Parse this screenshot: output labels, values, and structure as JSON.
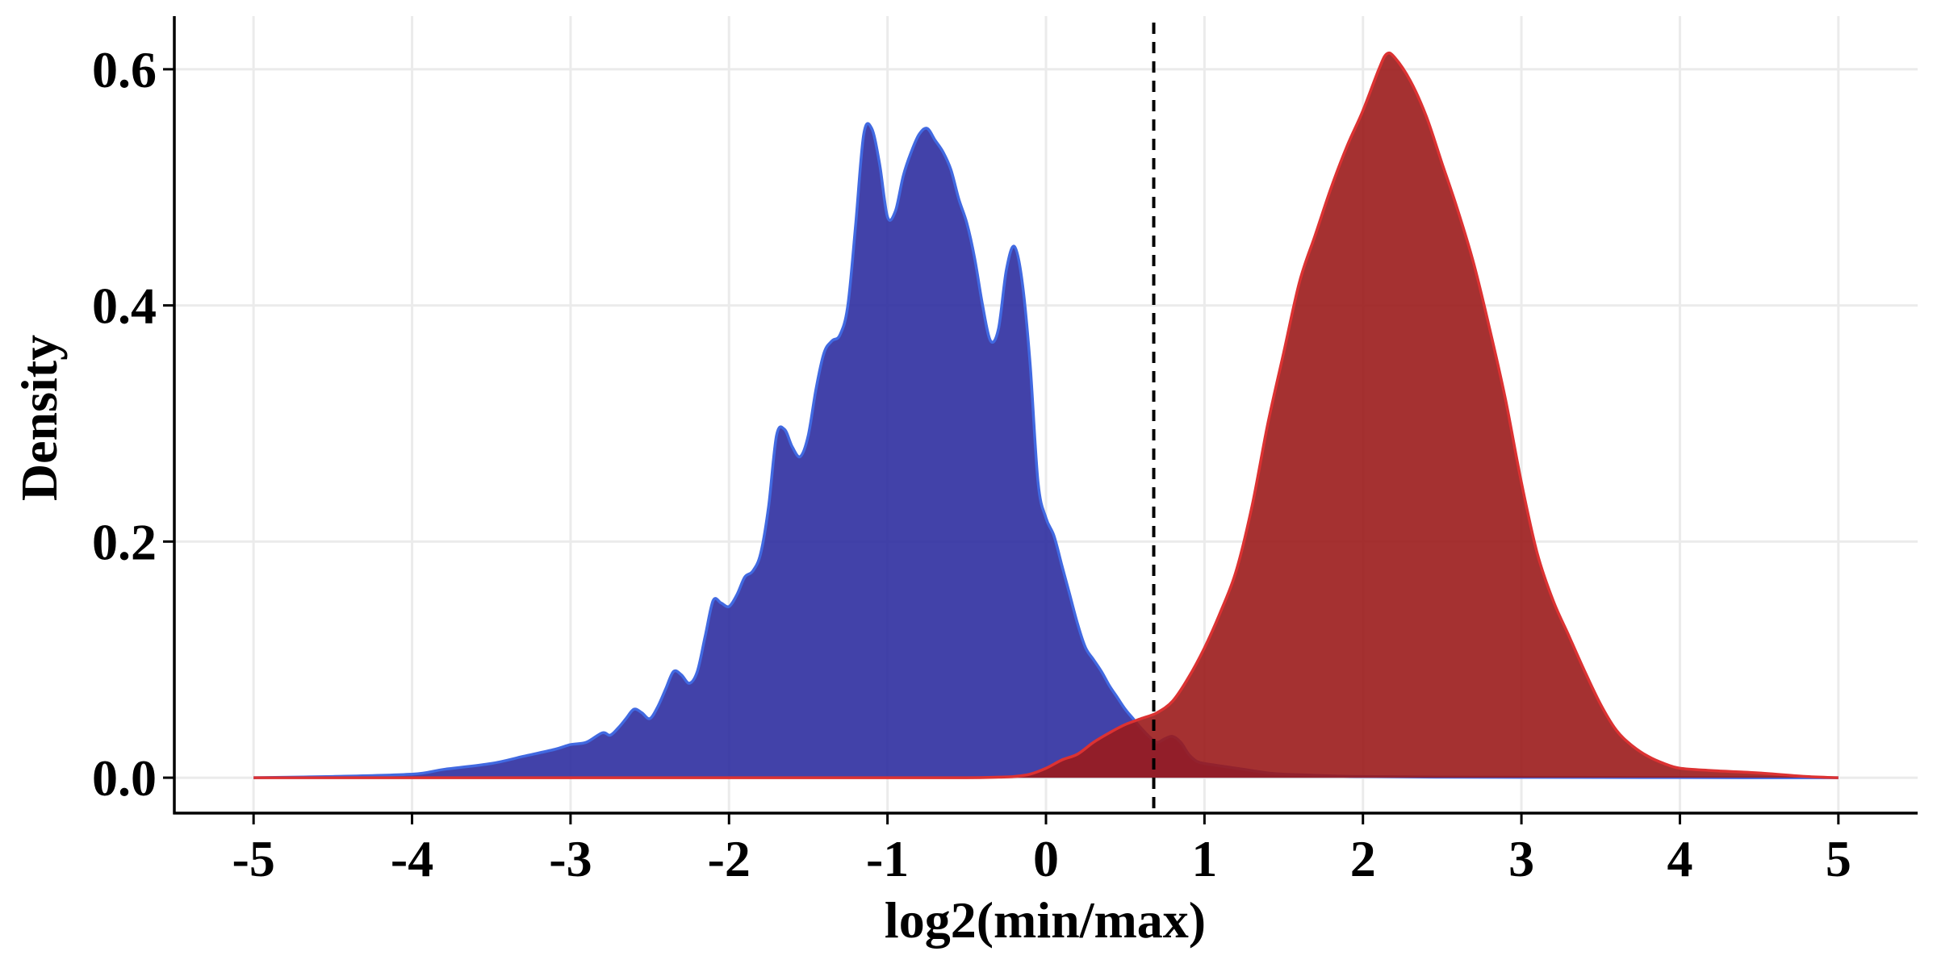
{
  "chart_data": {
    "type": "area",
    "xlabel": "log2(min/max)",
    "ylabel": "Density",
    "xlim": [
      -5.5,
      5.5
    ],
    "ylim": [
      -0.03,
      0.645
    ],
    "x_ticks": [
      -5,
      -4,
      -3,
      -2,
      -1,
      0,
      1,
      2,
      3,
      4,
      5
    ],
    "x_tick_labels": [
      "-5",
      "-4",
      "-3",
      "-2",
      "-1",
      "0",
      "1",
      "2",
      "3",
      "4",
      "5"
    ],
    "y_ticks": [
      0.0,
      0.2,
      0.4,
      0.6
    ],
    "y_tick_labels": [
      "0.0",
      "0.2",
      "0.4",
      "0.6"
    ],
    "grid": true,
    "legend": "none",
    "vline": {
      "x": 0.68,
      "style": "dashed",
      "color": "#000000"
    },
    "series": [
      {
        "fill": "#2e2ea0",
        "stroke": "#4169e1",
        "x": [
          -5.0,
          -4.5,
          -4.0,
          -3.8,
          -3.5,
          -3.3,
          -3.1,
          -3.0,
          -2.9,
          -2.8,
          -2.75,
          -2.7,
          -2.65,
          -2.6,
          -2.55,
          -2.5,
          -2.45,
          -2.4,
          -2.35,
          -2.3,
          -2.25,
          -2.2,
          -2.15,
          -2.1,
          -2.05,
          -2.0,
          -1.95,
          -1.9,
          -1.85,
          -1.8,
          -1.75,
          -1.7,
          -1.65,
          -1.6,
          -1.55,
          -1.5,
          -1.45,
          -1.4,
          -1.35,
          -1.3,
          -1.25,
          -1.2,
          -1.15,
          -1.1,
          -1.05,
          -1.0,
          -0.95,
          -0.9,
          -0.85,
          -0.8,
          -0.75,
          -0.7,
          -0.65,
          -0.6,
          -0.55,
          -0.5,
          -0.45,
          -0.4,
          -0.35,
          -0.3,
          -0.25,
          -0.2,
          -0.15,
          -0.1,
          -0.05,
          0.0,
          0.05,
          0.1,
          0.15,
          0.2,
          0.25,
          0.3,
          0.35,
          0.4,
          0.45,
          0.5,
          0.55,
          0.6,
          0.65,
          0.7,
          0.75,
          0.8,
          0.85,
          0.9,
          0.95,
          1.0,
          1.05,
          1.1,
          1.15,
          1.2,
          1.3,
          1.4,
          1.5,
          1.6,
          1.7,
          1.8,
          2.0,
          2.5,
          3.0,
          3.5,
          4.0,
          4.5,
          5.0
        ],
        "y": [
          0.0,
          0.001,
          0.003,
          0.007,
          0.012,
          0.018,
          0.024,
          0.028,
          0.03,
          0.038,
          0.036,
          0.042,
          0.05,
          0.058,
          0.055,
          0.05,
          0.06,
          0.075,
          0.09,
          0.087,
          0.08,
          0.09,
          0.12,
          0.15,
          0.148,
          0.145,
          0.155,
          0.17,
          0.175,
          0.19,
          0.23,
          0.29,
          0.295,
          0.28,
          0.272,
          0.29,
          0.33,
          0.36,
          0.37,
          0.375,
          0.4,
          0.47,
          0.545,
          0.55,
          0.52,
          0.475,
          0.48,
          0.51,
          0.53,
          0.545,
          0.55,
          0.54,
          0.53,
          0.515,
          0.49,
          0.47,
          0.44,
          0.4,
          0.37,
          0.38,
          0.43,
          0.45,
          0.42,
          0.35,
          0.25,
          0.22,
          0.205,
          0.18,
          0.155,
          0.13,
          0.11,
          0.1,
          0.09,
          0.078,
          0.068,
          0.058,
          0.05,
          0.042,
          0.035,
          0.03,
          0.033,
          0.035,
          0.03,
          0.02,
          0.014,
          0.012,
          0.011,
          0.01,
          0.009,
          0.008,
          0.006,
          0.004,
          0.003,
          0.0025,
          0.002,
          0.0015,
          0.001,
          0.0005,
          0.0003,
          0.0002,
          0.0001,
          0.0,
          0.0
        ]
      },
      {
        "fill": "#9b1b1b",
        "stroke": "#dc3232",
        "x": [
          -5.0,
          -4.0,
          -3.0,
          -2.0,
          -1.0,
          -0.5,
          -0.3,
          -0.2,
          -0.1,
          0.0,
          0.1,
          0.2,
          0.3,
          0.4,
          0.5,
          0.6,
          0.7,
          0.8,
          0.9,
          1.0,
          1.1,
          1.2,
          1.3,
          1.4,
          1.5,
          1.6,
          1.7,
          1.8,
          1.9,
          2.0,
          2.1,
          2.15,
          2.2,
          2.3,
          2.4,
          2.5,
          2.6,
          2.7,
          2.8,
          2.9,
          3.0,
          3.1,
          3.2,
          3.3,
          3.4,
          3.5,
          3.6,
          3.7,
          3.8,
          3.9,
          4.0,
          4.2,
          4.5,
          4.8,
          5.0
        ],
        "y": [
          0.0,
          0.0,
          0.0,
          0.0,
          0.0,
          0.0,
          0.0005,
          0.001,
          0.003,
          0.008,
          0.015,
          0.02,
          0.03,
          0.038,
          0.045,
          0.05,
          0.055,
          0.065,
          0.085,
          0.11,
          0.14,
          0.175,
          0.23,
          0.3,
          0.36,
          0.42,
          0.46,
          0.5,
          0.535,
          0.565,
          0.6,
          0.613,
          0.61,
          0.59,
          0.56,
          0.52,
          0.48,
          0.435,
          0.38,
          0.32,
          0.25,
          0.19,
          0.15,
          0.12,
          0.09,
          0.062,
          0.04,
          0.027,
          0.018,
          0.012,
          0.008,
          0.006,
          0.004,
          0.001,
          0.0
        ]
      }
    ]
  }
}
